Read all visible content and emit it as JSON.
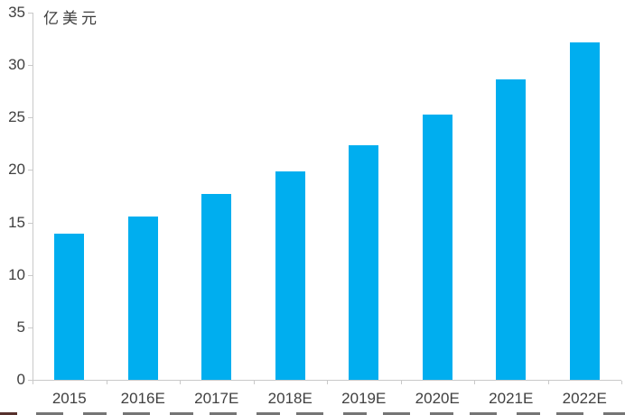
{
  "chart_data": {
    "type": "bar",
    "title": "",
    "unit_label": "亿美元",
    "categories": [
      "2015",
      "2016E",
      "2017E",
      "2018E",
      "2019E",
      "2020E",
      "2021E",
      "2022E"
    ],
    "values": [
      13.9,
      15.6,
      17.7,
      19.9,
      22.4,
      25.3,
      28.6,
      32.2
    ],
    "xlabel": "",
    "ylabel": "亿美元",
    "ylim": [
      0,
      35
    ],
    "y_ticks": [
      0,
      5,
      10,
      15,
      20,
      25,
      30,
      35
    ],
    "grid": false,
    "legend": null,
    "colors": {
      "bar": "#00AEEF",
      "axis_line": "#c9c9c9",
      "tick_text": "#404040",
      "unit_label_text": "#3d3d3d",
      "background": "#ffffff"
    }
  }
}
